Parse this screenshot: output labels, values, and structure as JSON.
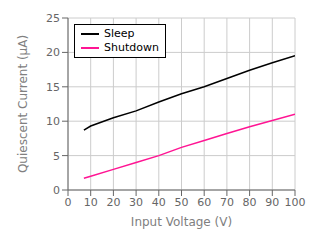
{
  "chart_data": {
    "type": "line",
    "xlabel": "Input Voltage (V)",
    "ylabel": "Quiescent Current (μA)",
    "xlim": [
      0,
      100
    ],
    "ylim": [
      0,
      25
    ],
    "xticks": [
      0,
      10,
      20,
      30,
      40,
      50,
      60,
      70,
      80,
      90,
      100
    ],
    "yticks": [
      0,
      5,
      10,
      15,
      20,
      25
    ],
    "grid": true,
    "legend": "upper left",
    "x": [
      7,
      10,
      20,
      30,
      40,
      50,
      60,
      70,
      80,
      90,
      100
    ],
    "series": [
      {
        "name": "Sleep",
        "color": "#000000",
        "values": [
          8.7,
          9.3,
          10.5,
          11.5,
          12.8,
          14.0,
          15.0,
          16.2,
          17.4,
          18.5,
          19.5
        ]
      },
      {
        "name": "Shutdown",
        "color": "#ff1493",
        "values": [
          1.7,
          2.0,
          3.0,
          4.0,
          5.0,
          6.2,
          7.2,
          8.2,
          9.2,
          10.1,
          11.0
        ]
      }
    ]
  }
}
